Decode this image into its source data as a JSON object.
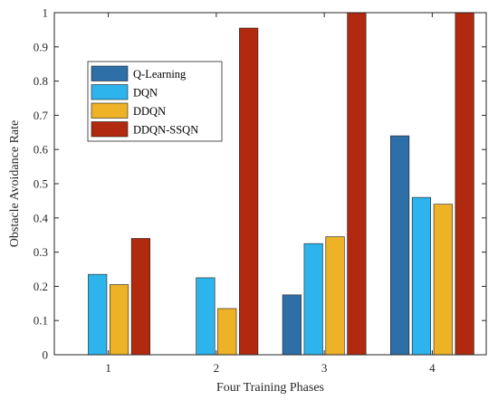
{
  "chart_data": {
    "type": "bar",
    "title": "",
    "xlabel": "Four Training Phases",
    "ylabel": "Obstacle Avoidance Rate",
    "categories": [
      "1",
      "2",
      "3",
      "4"
    ],
    "ylim": [
      0,
      1
    ],
    "yticks": [
      "0",
      "0.1",
      "0.2",
      "0.3",
      "0.4",
      "0.5",
      "0.6",
      "0.7",
      "0.8",
      "0.9",
      "1"
    ],
    "grid": false,
    "legend_position": "upper-left",
    "series": [
      {
        "name": "Q-Learning",
        "color": "#2e6fa8",
        "values": [
          0,
          0,
          0.175,
          0.64
        ]
      },
      {
        "name": "DQN",
        "color": "#2eb4ec",
        "values": [
          0.235,
          0.225,
          0.325,
          0.46
        ]
      },
      {
        "name": "DDQN",
        "color": "#edb226",
        "values": [
          0.205,
          0.135,
          0.345,
          0.44
        ]
      },
      {
        "name": "DDQN-SSQN",
        "color": "#b1290e",
        "values": [
          0.34,
          0.955,
          1.0,
          1.0
        ]
      }
    ]
  }
}
